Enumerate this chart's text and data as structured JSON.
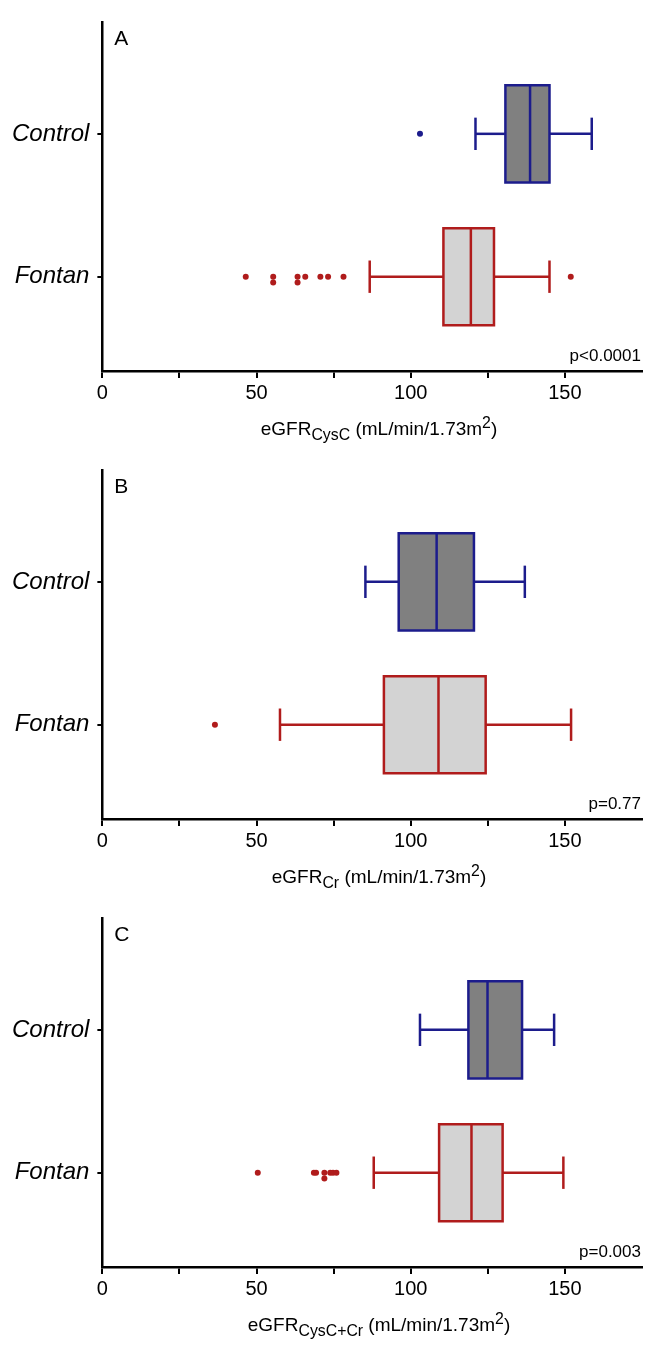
{
  "chart_data": [
    {
      "type": "box",
      "title": "A",
      "orientation": "horizontal",
      "categories": [
        "Control",
        "Fontan"
      ],
      "colors": [
        "#1c1c8c",
        "#b01c1c"
      ],
      "boxes": [
        {
          "low": 121,
          "q1": 130.7,
          "median": 138.7,
          "q3": 145,
          "high": 158.7,
          "outliers": [
            103
          ]
        },
        {
          "low": 86.7,
          "q1": 110.6,
          "median": 119.5,
          "q3": 127,
          "high": 145,
          "outliers": [
            46.5,
            55.4,
            55.4,
            63.3,
            63.3,
            65.8,
            70.7,
            73.2,
            78.2,
            151.9
          ]
        }
      ],
      "xlim": [
        0,
        175
      ],
      "xticks": [
        0,
        {
          "value": 25,
          "label": null
        },
        50,
        {
          "value": 75,
          "label": null
        },
        100,
        {
          "value": 125,
          "label": null
        },
        150
      ],
      "xlabel": "eGFR$_{CysC}$ (mL/min/1.73m$^{2}$)",
      "annotations": [
        "p<0.0001"
      ]
    },
    {
      "type": "box",
      "title": "B",
      "orientation": "horizontal",
      "categories": [
        "Control",
        "Fontan"
      ],
      "colors": [
        "#1c1c8c",
        "#b01c1c"
      ],
      "boxes": [
        {
          "low": 85.3,
          "q1": 96.1,
          "median": 108.4,
          "q3": 120.5,
          "high": 137
        },
        {
          "low": 57.6,
          "q1": 91.3,
          "median": 109,
          "q3": 124.3,
          "high": 152,
          "outliers": [
            36.5
          ]
        }
      ],
      "xlim": [
        0,
        175
      ],
      "xticks": [
        0,
        {
          "value": 25,
          "label": null
        },
        50,
        {
          "value": 75,
          "label": null
        },
        100,
        {
          "value": 125,
          "label": null
        },
        150
      ],
      "xlabel": "eGFR$_{Cr}$ (mL/min/1.73m$^{2}$)",
      "annotations": [
        "p=0.77"
      ]
    },
    {
      "type": "box",
      "title": "C",
      "orientation": "horizontal",
      "categories": [
        "Control",
        "Fontan"
      ],
      "colors": [
        "#1c1c8c",
        "#b01c1c"
      ],
      "boxes": [
        {
          "low": 103,
          "q1": 118.7,
          "median": 124.9,
          "q3": 136.1,
          "high": 146.5
        },
        {
          "low": 88,
          "q1": 109.2,
          "median": 119.7,
          "q3": 129.8,
          "high": 149.5,
          "outliers": [
            50.4,
            68.6,
            69.3,
            72,
            72,
            73.9,
            74.8,
            75.9
          ]
        }
      ],
      "xlim": [
        0,
        175
      ],
      "xticks": [
        0,
        {
          "value": 25,
          "label": null
        },
        50,
        {
          "value": 75,
          "label": null
        },
        100,
        {
          "value": 125,
          "label": null
        },
        150
      ],
      "xlabel": "eGFR$_{CysC+Cr}$ (mL/min/1.73m$^{2}$)",
      "annotations": [
        "p=0.003"
      ]
    }
  ]
}
